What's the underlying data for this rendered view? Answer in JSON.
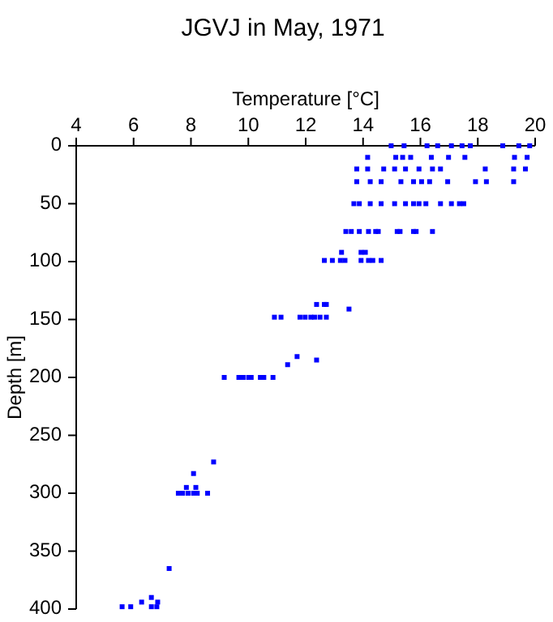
{
  "chart_data": {
    "type": "scatter",
    "title": "JGVJ in May, 1971",
    "xlabel": "Temperature [°C]",
    "ylabel": "Depth [m]",
    "xlim": [
      4,
      20
    ],
    "xticks": [
      4,
      6,
      8,
      10,
      12,
      14,
      16,
      18,
      20
    ],
    "ylim": [
      400,
      0
    ],
    "yticks": [
      0,
      50,
      100,
      150,
      200,
      250,
      300,
      350,
      400
    ],
    "grid": false,
    "marker": "square",
    "series": [
      {
        "color": "#0000ff",
        "x": [
          14.98,
          15.43,
          16.23,
          16.6,
          17.08,
          17.45,
          17.74,
          18.87,
          19.43,
          19.81,
          14.16,
          15.14,
          15.38,
          15.66,
          16.38,
          16.98,
          17.55,
          19.28,
          19.72,
          13.78,
          14.16,
          14.72,
          15.1,
          15.48,
          15.95,
          16.42,
          16.7,
          18.26,
          19.25,
          19.66,
          13.78,
          14.25,
          14.63,
          15.32,
          15.76,
          16.04,
          16.32,
          16.95,
          17.92,
          18.3,
          19.25,
          13.68,
          13.87,
          14.25,
          14.63,
          15.1,
          15.48,
          15.76,
          15.95,
          16.19,
          16.7,
          17.08,
          17.36,
          17.51,
          13.4,
          13.59,
          13.87,
          14.19,
          14.44,
          14.53,
          15.19,
          15.29,
          15.76,
          15.85,
          16.42,
          13.25,
          13.93,
          14.08,
          12.65,
          12.93,
          13.21,
          13.37,
          13.93,
          14.19,
          14.34,
          14.63,
          12.38,
          12.65,
          12.72,
          13.51,
          10.91,
          11.14,
          11.8,
          11.98,
          12.18,
          12.31,
          12.5,
          12.72,
          11.37,
          11.7,
          12.38,
          9.16,
          9.67,
          9.82,
          10.01,
          10.1,
          10.42,
          10.54,
          10.86,
          8.79,
          8.09,
          7.56,
          7.71,
          7.9,
          8.09,
          8.22,
          8.58,
          7.84,
          8.17,
          7.24,
          5.6,
          5.9,
          6.62,
          6.81,
          6.28,
          6.84,
          6.62
        ],
        "values": [
          0,
          0,
          0,
          0,
          0,
          0,
          0,
          0,
          0,
          0,
          10,
          10,
          10,
          10,
          10,
          10,
          10,
          10,
          10,
          20,
          20,
          20,
          20,
          20,
          20,
          20,
          20,
          20,
          20,
          20,
          31,
          31,
          31,
          31,
          31,
          31,
          31,
          31,
          31,
          31,
          31,
          50,
          50,
          50,
          50,
          50,
          50,
          50,
          50,
          50,
          50,
          50,
          50,
          50,
          74,
          74,
          74,
          74,
          74,
          74,
          74,
          74,
          74,
          74,
          74,
          92,
          92,
          92,
          99,
          99,
          99,
          99,
          99,
          99,
          99,
          99,
          137,
          137,
          137,
          141,
          148,
          148,
          148,
          148,
          148,
          148,
          148,
          148,
          189,
          182,
          185,
          200,
          200,
          200,
          200,
          200,
          200,
          200,
          200,
          273,
          283,
          300,
          300,
          300,
          300,
          300,
          300,
          295,
          295,
          365,
          398,
          398,
          398,
          398,
          394,
          394,
          390
        ]
      }
    ]
  }
}
